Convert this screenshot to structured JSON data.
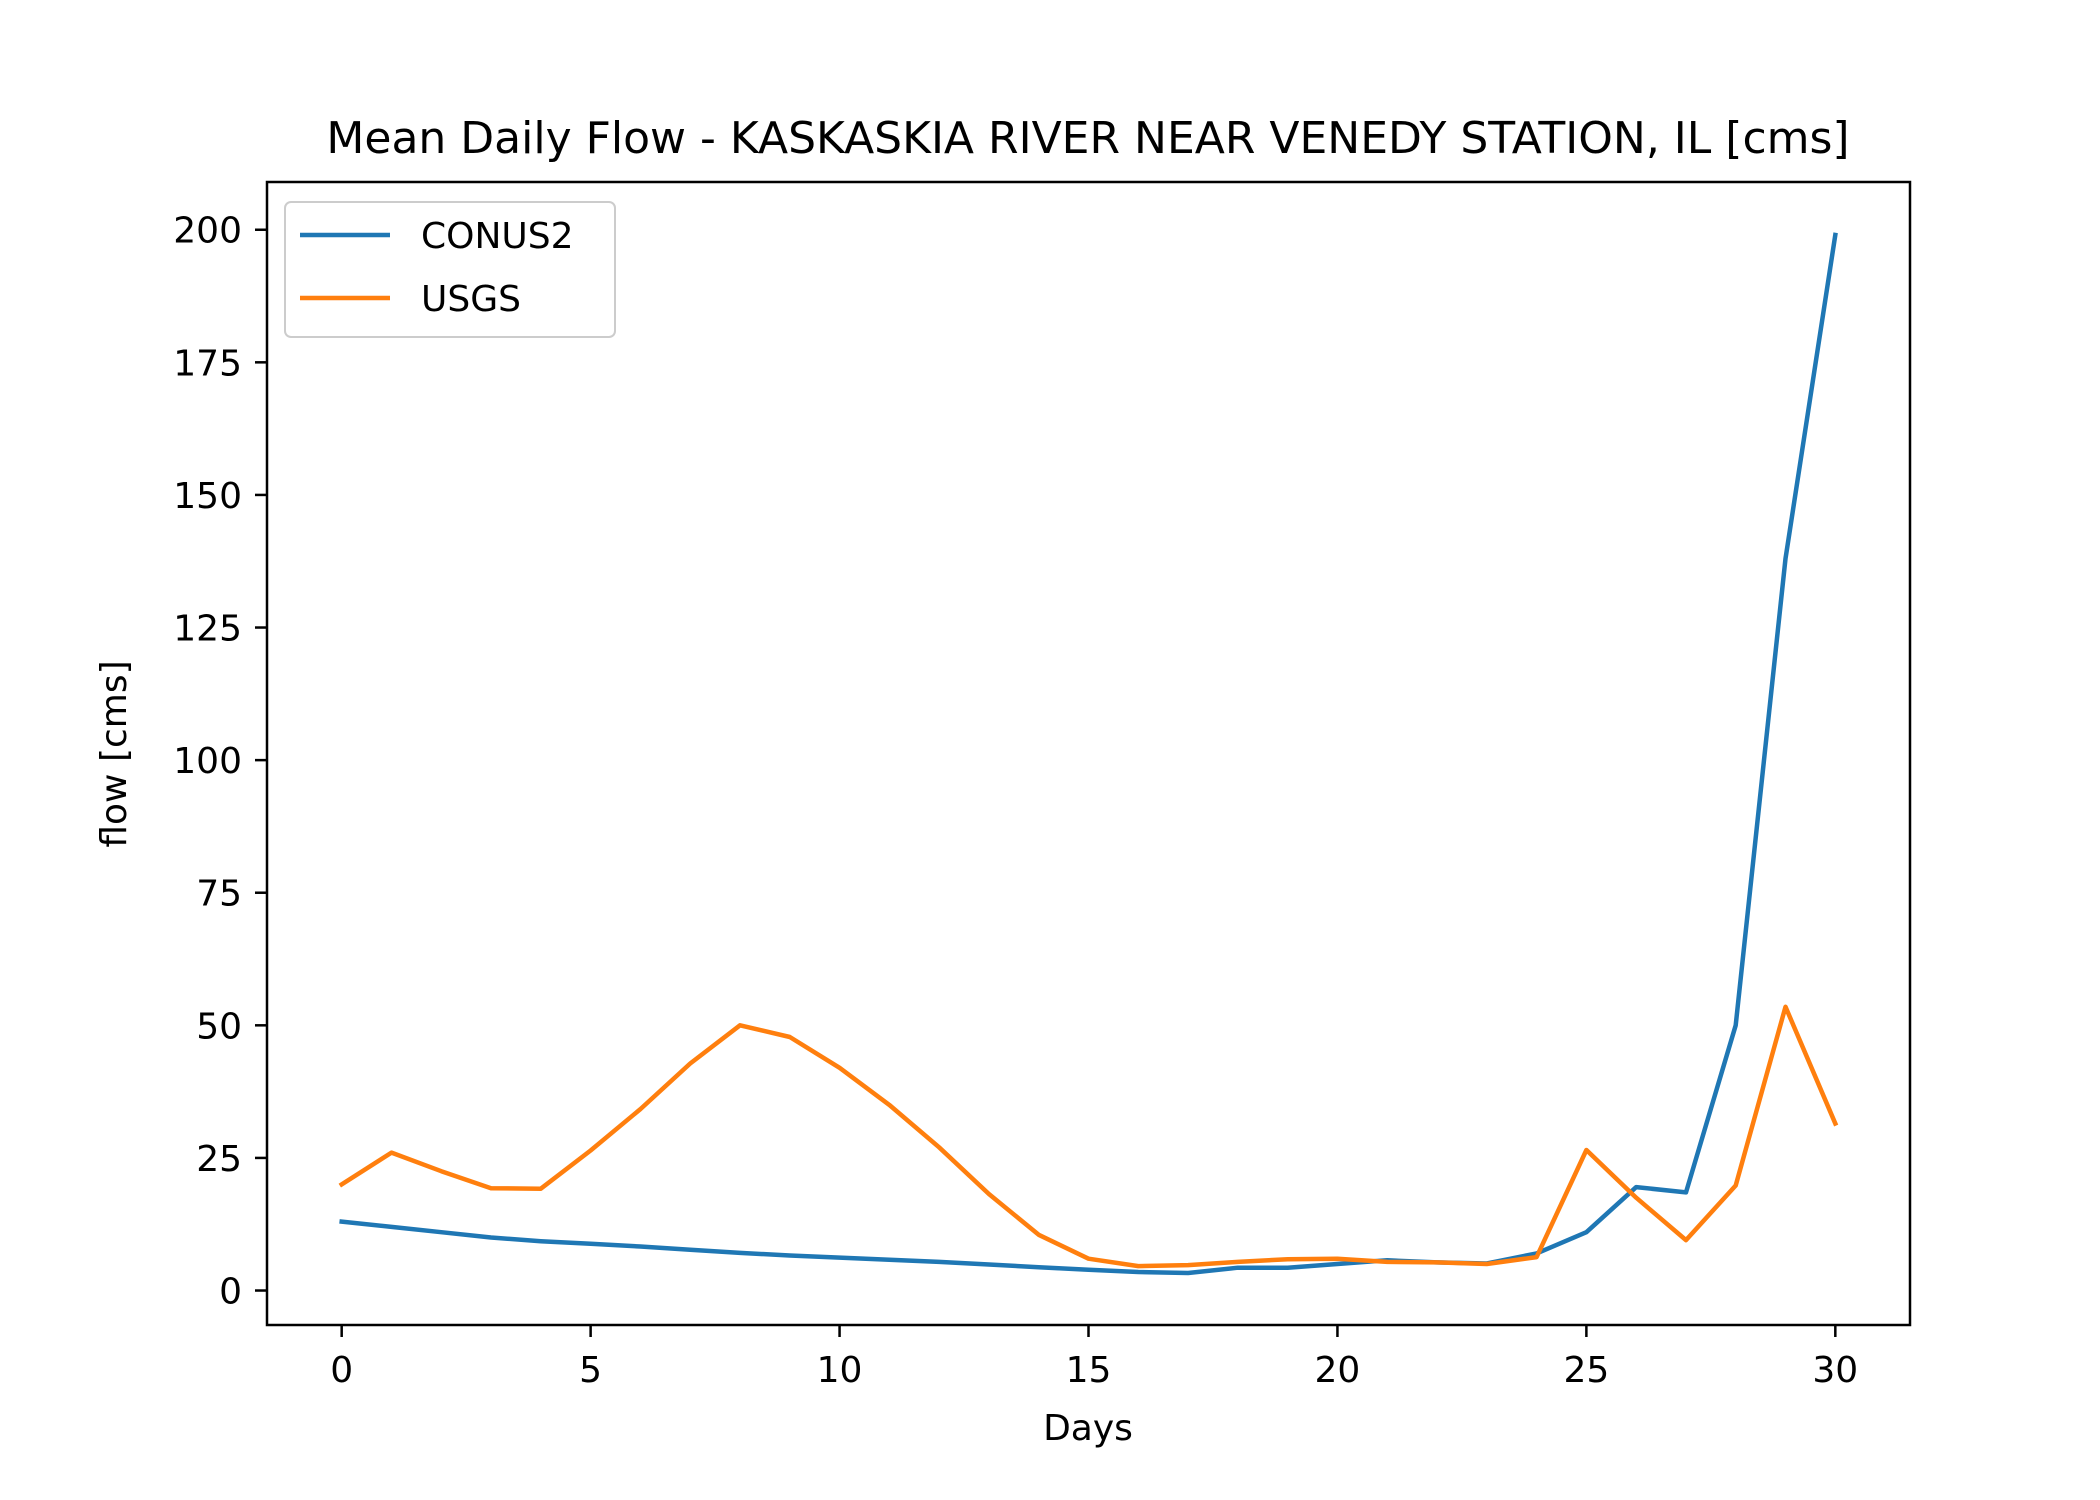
{
  "chart_data": {
    "type": "line",
    "title": "Mean Daily Flow - KASKASKIA RIVER NEAR VENEDY STATION, IL [cms]",
    "xlabel": "Days",
    "ylabel": "flow [cms]",
    "xlim": [
      -1.5,
      31.5
    ],
    "ylim": [
      -6.5,
      209
    ],
    "xticks": [
      0,
      5,
      10,
      15,
      20,
      25,
      30
    ],
    "yticks": [
      0,
      25,
      50,
      75,
      100,
      125,
      150,
      175,
      200
    ],
    "grid": false,
    "legend_position": "upper-left",
    "x": [
      0,
      1,
      2,
      3,
      4,
      5,
      6,
      7,
      8,
      9,
      10,
      11,
      12,
      13,
      14,
      15,
      16,
      17,
      18,
      19,
      20,
      21,
      22,
      23,
      24,
      25,
      26,
      27,
      28,
      29,
      30
    ],
    "series": [
      {
        "name": "CONUS2",
        "color": "#1f77b4",
        "values": [
          13.0,
          12.0,
          11.0,
          10.0,
          9.3,
          8.8,
          8.3,
          7.7,
          7.1,
          6.6,
          6.2,
          5.8,
          5.4,
          4.9,
          4.4,
          3.9,
          3.5,
          3.3,
          4.3,
          4.3,
          5.0,
          5.7,
          5.3,
          5.1,
          7.0,
          11.0,
          19.5,
          18.5,
          50.0,
          138.0,
          199.0
        ]
      },
      {
        "name": "USGS",
        "color": "#ff7f0e",
        "values": [
          20.0,
          26.0,
          22.5,
          19.3,
          19.2,
          26.4,
          34.2,
          42.8,
          50.0,
          47.8,
          42.0,
          35.0,
          27.0,
          18.2,
          10.5,
          6.0,
          4.6,
          4.8,
          5.4,
          5.9,
          6.0,
          5.4,
          5.3,
          5.0,
          6.3,
          26.5,
          17.5,
          9.5,
          19.8,
          53.5,
          31.5
        ]
      }
    ]
  }
}
